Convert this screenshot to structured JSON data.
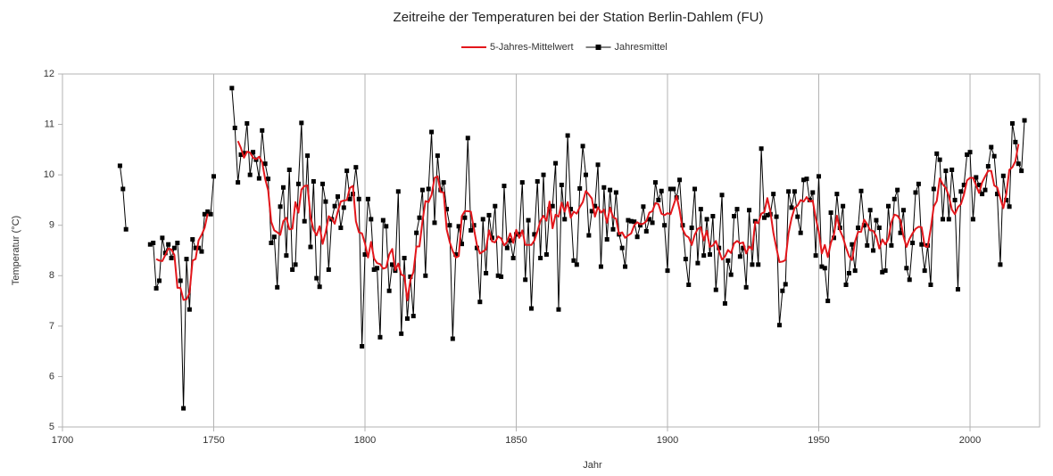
{
  "chart_data": {
    "type": "line",
    "title": "Zeitreihe der Temperaturen bei der Station Berlin-Dahlem (FU)",
    "x_label": "Jahr",
    "y_label": "Temperatur (°C)",
    "xlim": [
      1700,
      2023
    ],
    "xticks": [
      1700,
      1750,
      1800,
      1850,
      1900,
      1950,
      2000
    ],
    "ylim": [
      5,
      12
    ],
    "yticks": [
      5,
      6,
      7,
      8,
      9,
      10,
      11,
      12
    ],
    "grid": "x",
    "legend": "top",
    "x": [
      1719,
      1720,
      1721,
      1722,
      1723,
      1724,
      1725,
      1726,
      1727,
      1728,
      1729,
      1730,
      1731,
      1732,
      1733,
      1734,
      1735,
      1736,
      1737,
      1738,
      1739,
      1740,
      1741,
      1742,
      1743,
      1744,
      1745,
      1746,
      1747,
      1748,
      1749,
      1750,
      1751,
      1752,
      1753,
      1754,
      1755,
      1756,
      1757,
      1758,
      1759,
      1760,
      1761,
      1762,
      1763,
      1764,
      1765,
      1766,
      1767,
      1768,
      1769,
      1770,
      1771,
      1772,
      1773,
      1774,
      1775,
      1776,
      1777,
      1778,
      1779,
      1780,
      1781,
      1782,
      1783,
      1784,
      1785,
      1786,
      1787,
      1788,
      1789,
      1790,
      1791,
      1792,
      1793,
      1794,
      1795,
      1796,
      1797,
      1798,
      1799,
      1800,
      1801,
      1802,
      1803,
      1804,
      1805,
      1806,
      1807,
      1808,
      1809,
      1810,
      1811,
      1812,
      1813,
      1814,
      1815,
      1816,
      1817,
      1818,
      1819,
      1820,
      1821,
      1822,
      1823,
      1824,
      1825,
      1826,
      1827,
      1828,
      1829,
      1830,
      1831,
      1832,
      1833,
      1834,
      1835,
      1836,
      1837,
      1838,
      1839,
      1840,
      1841,
      1842,
      1843,
      1844,
      1845,
      1846,
      1847,
      1848,
      1849,
      1850,
      1851,
      1852,
      1853,
      1854,
      1855,
      1856,
      1857,
      1858,
      1859,
      1860,
      1861,
      1862,
      1863,
      1864,
      1865,
      1866,
      1867,
      1868,
      1869,
      1870,
      1871,
      1872,
      1873,
      1874,
      1875,
      1876,
      1877,
      1878,
      1879,
      1880,
      1881,
      1882,
      1883,
      1884,
      1885,
      1886,
      1887,
      1888,
      1889,
      1890,
      1891,
      1892,
      1893,
      1894,
      1895,
      1896,
      1897,
      1898,
      1899,
      1900,
      1901,
      1902,
      1903,
      1904,
      1905,
      1906,
      1907,
      1908,
      1909,
      1910,
      1911,
      1912,
      1913,
      1914,
      1915,
      1916,
      1917,
      1918,
      1919,
      1920,
      1921,
      1922,
      1923,
      1924,
      1925,
      1926,
      1927,
      1928,
      1929,
      1930,
      1931,
      1932,
      1933,
      1934,
      1935,
      1936,
      1937,
      1938,
      1939,
      1940,
      1941,
      1942,
      1943,
      1944,
      1945,
      1946,
      1947,
      1948,
      1949,
      1950,
      1951,
      1952,
      1953,
      1954,
      1955,
      1956,
      1957,
      1958,
      1959,
      1960,
      1961,
      1962,
      1963,
      1964,
      1965,
      1966,
      1967,
      1968,
      1969,
      1970,
      1971,
      1972,
      1973,
      1974,
      1975,
      1976,
      1977,
      1978,
      1979,
      1980,
      1981,
      1982,
      1983,
      1984,
      1985,
      1986,
      1987,
      1988,
      1989,
      1990,
      1991,
      1992,
      1993,
      1994,
      1995,
      1996,
      1997,
      1998,
      1999,
      2000,
      2001,
      2002,
      2003,
      2004,
      2005,
      2006,
      2007,
      2008,
      2009,
      2010,
      2011,
      2012,
      2013,
      2014,
      2015,
      2016,
      2017,
      2018
    ],
    "series": [
      {
        "name": "5-Jahres-Mittelwert",
        "color": "#e3161b",
        "markers": false,
        "values": [
          null,
          null,
          null,
          null,
          null,
          null,
          null,
          null,
          null,
          null,
          null,
          null,
          8.33,
          8.3,
          8.29,
          8.41,
          8.54,
          8.52,
          8.41,
          7.76,
          7.76,
          7.52,
          7.53,
          7.66,
          8.3,
          8.33,
          8.7,
          8.81,
          8.95,
          9.23,
          null,
          null,
          null,
          null,
          null,
          null,
          null,
          null,
          null,
          10.67,
          10.53,
          10.34,
          10.46,
          10.44,
          10.34,
          10.31,
          10.36,
          10.25,
          9.92,
          9.69,
          9.07,
          8.9,
          8.86,
          8.81,
          9.08,
          9.15,
          8.92,
          8.93,
          9.46,
          9.25,
          9.71,
          9.78,
          9.79,
          9.17,
          8.91,
          8.8,
          8.98,
          8.63,
          8.86,
          9.18,
          9.13,
          9.03,
          9.27,
          9.47,
          9.49,
          9.5,
          9.74,
          9.78,
          9.08,
          8.86,
          8.84,
          8.64,
          8.36,
          8.67,
          8.34,
          8.25,
          8.23,
          8.14,
          8.16,
          8.42,
          8.53,
          8.11,
          8.24,
          8.02,
          8.0,
          7.51,
          7.91,
          8.07,
          8.58,
          8.58,
          9.08,
          9.48,
          9.46,
          9.6,
          9.94,
          9.97,
          9.66,
          9.65,
          8.92,
          8.67,
          8.49,
          8.36,
          8.39,
          9.18,
          9.28,
          9.28,
          9.27,
          8.93,
          8.61,
          8.44,
          8.48,
          8.52,
          8.9,
          8.68,
          8.66,
          8.78,
          8.74,
          8.6,
          8.67,
          8.84,
          8.65,
          8.91,
          8.75,
          8.9,
          8.61,
          8.61,
          8.61,
          8.7,
          8.88,
          9.09,
          9.19,
          9.09,
          9.47,
          8.94,
          9.21,
          9.17,
          9.45,
          9.27,
          9.46,
          9.15,
          9.27,
          9.23,
          9.36,
          9.46,
          9.68,
          9.61,
          9.53,
          9.17,
          9.36,
          9.25,
          9.31,
          9.05,
          9.35,
          9.16,
          9.13,
          8.82,
          8.86,
          8.75,
          8.8,
          8.84,
          9.0,
          9.06,
          9.02,
          9.03,
          9.08,
          9.25,
          9.28,
          9.44,
          9.42,
          9.23,
          9.2,
          9.24,
          9.22,
          9.4,
          9.58,
          9.3,
          8.92,
          8.8,
          8.76,
          8.61,
          8.81,
          8.93,
          8.96,
          8.7,
          8.89,
          8.57,
          8.6,
          8.69,
          8.5,
          8.32,
          8.38,
          8.51,
          8.45,
          8.64,
          8.69,
          8.64,
          8.66,
          8.44,
          8.58,
          8.52,
          9.07,
          9.04,
          9.23,
          9.26,
          9.54,
          9.27,
          8.85,
          8.55,
          8.27,
          8.28,
          8.31,
          8.84,
          9.14,
          9.34,
          9.39,
          9.5,
          9.47,
          9.56,
          9.47,
          9.49,
          9.14,
          8.87,
          8.44,
          8.61,
          8.37,
          8.65,
          8.81,
          9.19,
          8.9,
          8.76,
          8.56,
          8.39,
          8.31,
          8.68,
          8.87,
          8.87,
          9.11,
          9.02,
          8.9,
          8.89,
          8.78,
          8.54,
          8.72,
          8.62,
          8.73,
          9.06,
          9.21,
          9.19,
          9.1,
          8.78,
          8.57,
          8.73,
          8.84,
          8.93,
          8.97,
          8.96,
          8.59,
          8.57,
          8.93,
          9.37,
          9.48,
          9.93,
          9.81,
          9.74,
          9.58,
          9.31,
          9.22,
          9.36,
          9.42,
          9.61,
          9.89,
          9.94,
          9.94,
          9.79,
          9.64,
          9.85,
          9.97,
          10.08,
          10.08,
          9.79,
          9.75,
          9.54,
          9.34,
          9.62,
          10.1,
          10.15,
          10.27,
          10.61,
          null,
          null
        ]
      },
      {
        "name": "Jahresmittel",
        "color": "#000000",
        "markers": true,
        "values": [
          10.18,
          9.72,
          8.92,
          null,
          null,
          null,
          null,
          null,
          null,
          null,
          8.62,
          8.65,
          7.75,
          7.9,
          8.75,
          8.45,
          8.62,
          8.35,
          8.55,
          8.65,
          7.9,
          5.37,
          8.33,
          7.33,
          8.72,
          8.55,
          8.55,
          8.48,
          9.22,
          9.27,
          9.22,
          9.97,
          null,
          null,
          null,
          null,
          null,
          11.72,
          10.93,
          9.85,
          10.4,
          10.43,
          11.02,
          10.0,
          10.45,
          10.3,
          9.93,
          10.88,
          10.22,
          9.92,
          8.65,
          8.77,
          7.77,
          9.37,
          9.75,
          8.4,
          10.1,
          8.12,
          8.22,
          9.82,
          11.03,
          9.08,
          10.38,
          8.57,
          9.87,
          7.95,
          7.78,
          9.82,
          9.47,
          8.12,
          9.12,
          9.38,
          9.57,
          8.95,
          9.35,
          10.08,
          9.52,
          9.62,
          10.15,
          9.52,
          6.6,
          8.42,
          9.52,
          9.12,
          8.12,
          8.15,
          6.78,
          9.1,
          8.98,
          7.7,
          8.22,
          8.1,
          9.67,
          6.85,
          8.35,
          7.15,
          7.98,
          7.2,
          8.85,
          9.15,
          9.7,
          8.0,
          9.72,
          10.85,
          9.05,
          10.38,
          9.7,
          9.85,
          9.32,
          9.0,
          6.75,
          8.42,
          8.98,
          8.63,
          9.15,
          10.73,
          8.9,
          9.0,
          8.55,
          7.48,
          9.12,
          8.05,
          9.2,
          8.75,
          9.38,
          8.0,
          7.98,
          9.78,
          8.55,
          8.7,
          8.35,
          8.82,
          8.82,
          9.85,
          7.92,
          9.1,
          7.35,
          8.82,
          9.87,
          8.35,
          10.0,
          8.42,
          9.32,
          9.38,
          10.23,
          7.33,
          9.8,
          9.12,
          10.78,
          9.32,
          8.3,
          8.22,
          9.73,
          10.57,
          10.0,
          8.8,
          9.28,
          9.38,
          10.2,
          8.18,
          9.75,
          8.72,
          9.7,
          8.92,
          9.65,
          8.82,
          8.55,
          8.18,
          9.1,
          9.08,
          9.07,
          8.77,
          9.0,
          9.37,
          8.88,
          9.12,
          9.05,
          9.85,
          9.5,
          9.68,
          9.0,
          8.1,
          9.72,
          9.72,
          9.55,
          9.9,
          9.0,
          8.33,
          7.82,
          8.95,
          9.72,
          8.25,
          9.32,
          8.4,
          9.12,
          8.42,
          9.18,
          7.72,
          8.55,
          9.6,
          7.45,
          8.3,
          8.02,
          9.18,
          9.32,
          8.38,
          8.55,
          7.77,
          9.3,
          8.22,
          9.08,
          8.22,
          10.52,
          9.15,
          9.2,
          9.22,
          9.62,
          9.17,
          7.02,
          7.7,
          7.83,
          9.67,
          9.35,
          9.67,
          9.17,
          8.85,
          9.9,
          9.92,
          9.5,
          9.65,
          8.4,
          9.97,
          8.18,
          8.15,
          7.5,
          9.25,
          8.75,
          9.62,
          8.95,
          9.38,
          7.82,
          8.05,
          8.62,
          8.1,
          8.95,
          9.68,
          9.0,
          8.6,
          9.3,
          8.5,
          9.1,
          8.95,
          8.07,
          8.1,
          9.38,
          8.6,
          9.52,
          9.7,
          8.85,
          9.3,
          8.15,
          7.92,
          8.65,
          9.65,
          9.82,
          8.62,
          8.1,
          8.6,
          7.82,
          9.72,
          10.42,
          10.3,
          9.12,
          10.08,
          9.12,
          10.1,
          9.5,
          7.73,
          9.67,
          9.8,
          10.4,
          10.45,
          9.12,
          9.95,
          9.8,
          9.62,
          9.7,
          10.17,
          10.55,
          10.37,
          9.62,
          8.22,
          9.98,
          9.5,
          9.37,
          11.02,
          10.65,
          10.22,
          10.08,
          11.08
        ]
      }
    ]
  }
}
